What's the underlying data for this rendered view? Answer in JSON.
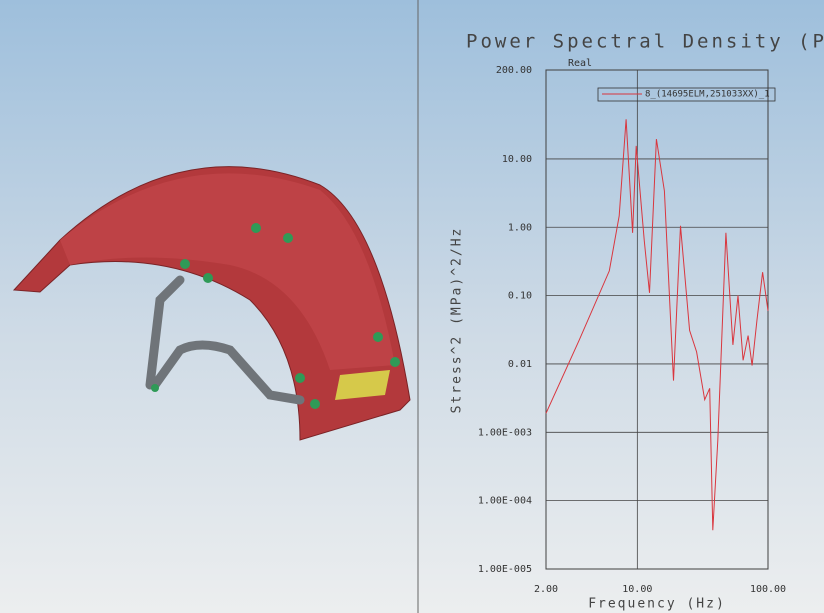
{
  "chart_data": {
    "type": "line",
    "title": "Power Spectral Density (PS",
    "xlabel": "Frequency (Hz)",
    "ylabel": "Stress^2 (MPa)^2/Hz",
    "annotation": "Real",
    "xscale": "log",
    "yscale": "log",
    "grid": true,
    "legend": "upper right",
    "x": [
      2,
      3.58,
      6.1,
      7.27,
      8.2,
      9.2,
      9.8,
      11.3,
      12.4,
      14,
      16.1,
      18.9,
      21.4,
      25.1,
      28.4,
      32.8,
      35.8,
      37.8,
      41.3,
      47.6,
      53.9,
      58.9,
      64.5,
      70.4,
      75.5,
      82.2,
      91,
      100
    ],
    "series": [
      {
        "name": "8_(14695ELM,251033XX)_1",
        "color": "#d9363e",
        "values": [
          0.0019,
          0.022,
          0.23,
          1.47,
          38,
          0.83,
          15.5,
          0.63,
          0.11,
          19.5,
          3.4,
          0.0057,
          1.05,
          0.031,
          0.015,
          0.003,
          0.0044,
          3.7e-05,
          0.00076,
          0.83,
          0.019,
          0.1,
          0.0113,
          0.026,
          0.0095,
          0.043,
          0.22,
          0.06
        ]
      }
    ],
    "xlim": [
      2,
      100
    ],
    "xticks": [
      {
        "value": 2,
        "label": "2.00"
      },
      {
        "value": 10,
        "label": "10.00"
      },
      {
        "value": 100,
        "label": "100.00"
      }
    ],
    "ylim": [
      1e-05,
      200
    ],
    "yticks": [
      {
        "value": 200,
        "label": "200.00"
      },
      {
        "value": 10,
        "label": "10.00"
      },
      {
        "value": 1,
        "label": "1.00"
      },
      {
        "value": 0.1,
        "label": "0.10"
      },
      {
        "value": 0.01,
        "label": "0.01"
      },
      {
        "value": 0.001,
        "label": "1.00E-003"
      },
      {
        "value": 0.0001,
        "label": "1.00E-004"
      },
      {
        "value": 1e-05,
        "label": "1.00E-005"
      }
    ]
  }
}
